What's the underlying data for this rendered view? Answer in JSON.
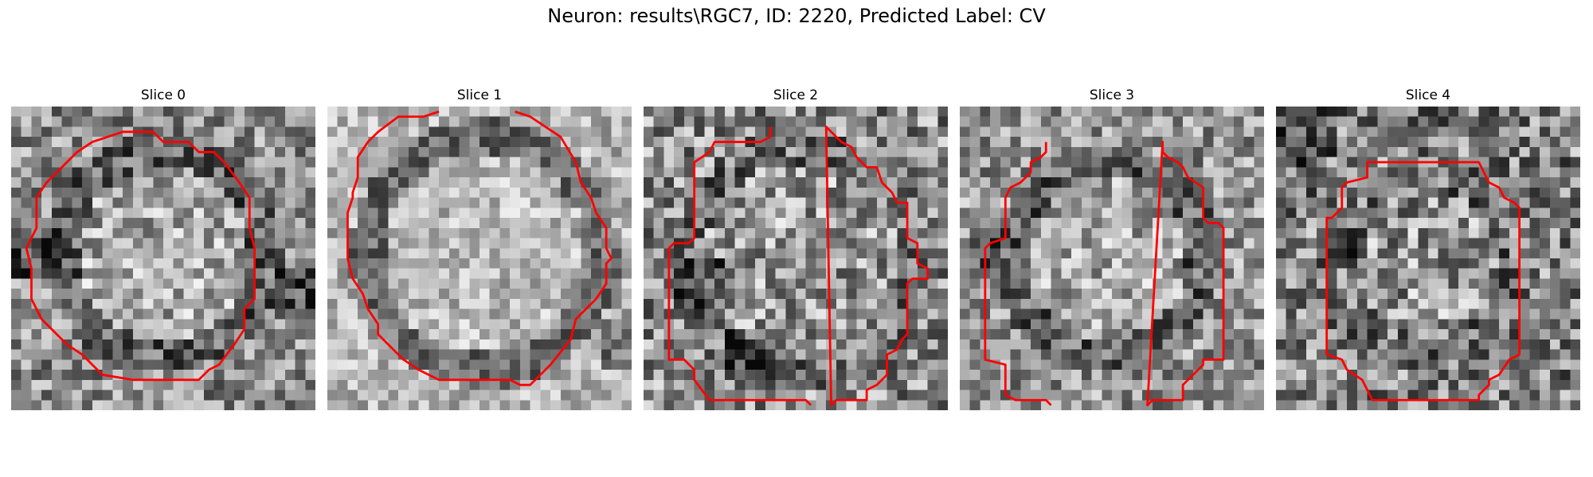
{
  "figure": {
    "title": "Neuron: results\\RGC7, ID: 2220, Predicted Label: CV",
    "contour_color": "#ff0000"
  },
  "panels": [
    {
      "title": "Slice 0"
    },
    {
      "title": "Slice 1"
    },
    {
      "title": "Slice 2"
    },
    {
      "title": "Slice 3"
    },
    {
      "title": "Slice 4"
    }
  ]
}
